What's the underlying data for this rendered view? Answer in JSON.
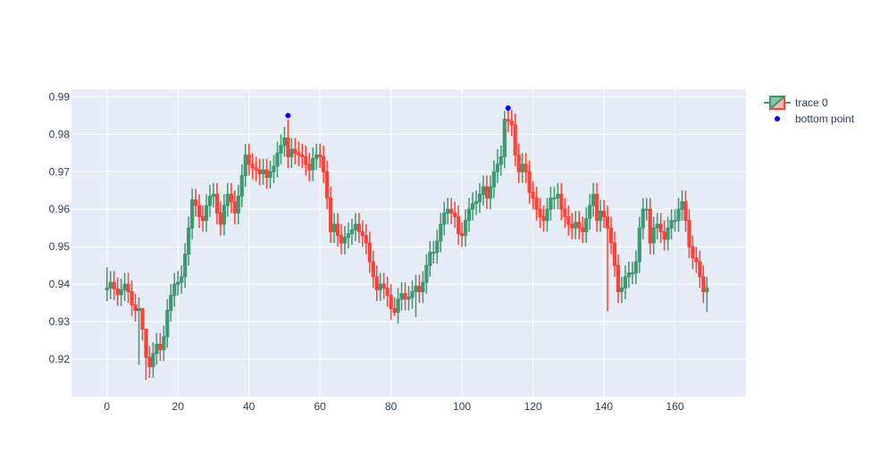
{
  "chart_data": {
    "type": "candlestick",
    "xlim": [
      -10,
      180
    ],
    "ylim": [
      0.91,
      0.992
    ],
    "xticks": [
      0,
      20,
      40,
      60,
      80,
      100,
      120,
      140,
      160
    ],
    "yticks": [
      0.92,
      0.93,
      0.94,
      0.95,
      0.96,
      0.97,
      0.98,
      0.99
    ],
    "xtick_labels": [
      "0",
      "20",
      "40",
      "60",
      "80",
      "100",
      "120",
      "140",
      "160"
    ],
    "ytick_labels": [
      "0.92",
      "0.93",
      "0.94",
      "0.95",
      "0.96",
      "0.97",
      "0.98",
      "0.99"
    ],
    "grid": true,
    "legend_position": "top-right",
    "plot_bgcolor": "#e5ecf6",
    "colors": {
      "increasing": "#3d9970",
      "decreasing": "#ff4136",
      "marker": "#0000ff",
      "grid": "#ffffff",
      "text": "#2a3f5f"
    },
    "series": [
      {
        "name": "trace 0",
        "kind": "ohlc-candlestick",
        "x_start": 0,
        "close": [
          0.939,
          0.9405,
          0.9388,
          0.9372,
          0.9385,
          0.94,
          0.938,
          0.9345,
          0.933,
          0.9335,
          0.928,
          0.9205,
          0.918,
          0.9215,
          0.924,
          0.9225,
          0.926,
          0.933,
          0.937,
          0.94,
          0.9405,
          0.942,
          0.948,
          0.955,
          0.9625,
          0.961,
          0.958,
          0.957,
          0.961,
          0.9635,
          0.964,
          0.959,
          0.956,
          0.961,
          0.964,
          0.962,
          0.959,
          0.9635,
          0.969,
          0.9745,
          0.972,
          0.971,
          0.9705,
          0.9695,
          0.9705,
          0.9685,
          0.97,
          0.9715,
          0.975,
          0.977,
          0.979,
          0.974,
          0.976,
          0.975,
          0.9745,
          0.974,
          0.972,
          0.9705,
          0.9735,
          0.9745,
          0.974,
          0.97,
          0.963,
          0.954,
          0.956,
          0.953,
          0.951,
          0.9525,
          0.9535,
          0.9545,
          0.956,
          0.954,
          0.953,
          0.951,
          0.946,
          0.942,
          0.9385,
          0.94,
          0.939,
          0.937,
          0.9335,
          0.9325,
          0.936,
          0.9375,
          0.936,
          0.9365,
          0.938,
          0.9395,
          0.938,
          0.9405,
          0.945,
          0.9485,
          0.9485,
          0.9515,
          0.956,
          0.959,
          0.96,
          0.959,
          0.958,
          0.9535,
          0.953,
          0.957,
          0.96,
          0.9615,
          0.962,
          0.964,
          0.966,
          0.963,
          0.966,
          0.97,
          0.972,
          0.974,
          0.984,
          0.9835,
          0.9825,
          0.9745,
          0.97,
          0.972,
          0.97,
          0.9645,
          0.963,
          0.96,
          0.958,
          0.957,
          0.96,
          0.963,
          0.963,
          0.964,
          0.96,
          0.958,
          0.956,
          0.955,
          0.9565,
          0.955,
          0.954,
          0.9575,
          0.961,
          0.964,
          0.957,
          0.9595,
          0.958,
          0.955,
          0.951,
          0.945,
          0.938,
          0.939,
          0.942,
          0.943,
          0.943,
          0.946,
          0.955,
          0.96,
          0.96,
          0.951,
          0.955,
          0.956,
          0.954,
          0.952,
          0.955,
          0.957,
          0.957,
          0.96,
          0.962,
          0.957,
          0.95,
          0.947,
          0.946,
          0.942,
          0.938,
          0.939
        ],
        "open": [
          0.9385,
          0.939,
          0.9405,
          0.9388,
          0.9372,
          0.9385,
          0.94,
          0.938,
          0.9345,
          0.933,
          0.9335,
          0.928,
          0.9205,
          0.918,
          0.9215,
          0.924,
          0.9225,
          0.926,
          0.933,
          0.937,
          0.94,
          0.9405,
          0.942,
          0.948,
          0.955,
          0.9625,
          0.961,
          0.958,
          0.957,
          0.961,
          0.9635,
          0.964,
          0.959,
          0.956,
          0.961,
          0.964,
          0.962,
          0.959,
          0.9635,
          0.969,
          0.9745,
          0.972,
          0.971,
          0.9705,
          0.9695,
          0.9705,
          0.9685,
          0.97,
          0.9715,
          0.975,
          0.977,
          0.979,
          0.974,
          0.976,
          0.975,
          0.9745,
          0.974,
          0.972,
          0.9705,
          0.9735,
          0.9745,
          0.974,
          0.97,
          0.963,
          0.954,
          0.956,
          0.953,
          0.951,
          0.9525,
          0.9535,
          0.9545,
          0.956,
          0.954,
          0.953,
          0.951,
          0.946,
          0.942,
          0.9385,
          0.94,
          0.939,
          0.937,
          0.9335,
          0.9325,
          0.936,
          0.9375,
          0.936,
          0.9365,
          0.938,
          0.9395,
          0.938,
          0.9405,
          0.945,
          0.9485,
          0.9485,
          0.9515,
          0.956,
          0.959,
          0.96,
          0.959,
          0.958,
          0.9535,
          0.953,
          0.957,
          0.96,
          0.9615,
          0.962,
          0.964,
          0.966,
          0.963,
          0.966,
          0.97,
          0.972,
          0.974,
          0.984,
          0.9835,
          0.9825,
          0.9745,
          0.97,
          0.972,
          0.97,
          0.9645,
          0.963,
          0.96,
          0.958,
          0.957,
          0.96,
          0.963,
          0.963,
          0.964,
          0.96,
          0.958,
          0.956,
          0.955,
          0.9565,
          0.955,
          0.954,
          0.9575,
          0.961,
          0.964,
          0.957,
          0.9595,
          0.958,
          0.955,
          0.951,
          0.945,
          0.938,
          0.939,
          0.942,
          0.943,
          0.943,
          0.946,
          0.955,
          0.96,
          0.96,
          0.951,
          0.955,
          0.956,
          0.954,
          0.952,
          0.955,
          0.957,
          0.957,
          0.96,
          0.962,
          0.957,
          0.95,
          0.947,
          0.946,
          0.942,
          0.938
        ],
        "high_extra": 0.003,
        "low_extra": 0.003,
        "high_overrides": {
          "0": 0.9445,
          "10": 0.93,
          "11": 0.9225,
          "51": 0.984,
          "110": 0.976,
          "112": 0.9862,
          "113": 0.9865
        },
        "low_overrides": {
          "9": 0.9185,
          "11": 0.9145,
          "81": 0.9315,
          "87": 0.9312,
          "141": 0.9328,
          "169": 0.9326
        }
      },
      {
        "name": "bottom point",
        "kind": "markers",
        "x": [
          51,
          113
        ],
        "y": [
          0.985,
          0.987
        ]
      }
    ]
  }
}
